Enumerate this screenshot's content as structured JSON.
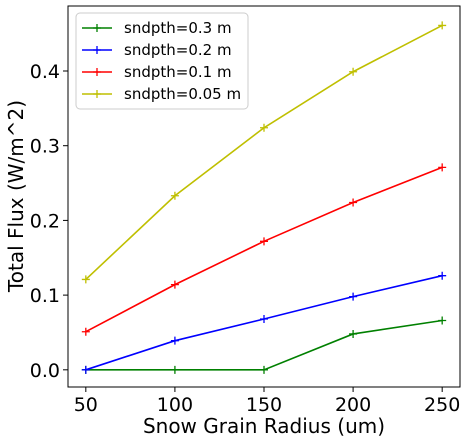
{
  "chart_data": {
    "type": "line",
    "title": "",
    "xlabel": "Snow Grain Radius (um)",
    "ylabel": "Total Flux (W/m^2)",
    "x": [
      50,
      100,
      150,
      200,
      250
    ],
    "xlim": [
      40,
      260
    ],
    "ylim": [
      -0.023,
      0.487
    ],
    "xticks": [
      50,
      100,
      150,
      200,
      250
    ],
    "yticks": [
      0.0,
      0.1,
      0.2,
      0.3,
      0.4
    ],
    "ytick_labels": [
      "0.0",
      "0.1",
      "0.2",
      "0.3",
      "0.4"
    ],
    "grid": false,
    "legend_position": "top-left",
    "marker": "plus",
    "series": [
      {
        "name": "sndpth=0.3 m",
        "color": "#008000",
        "values": [
          0.0,
          0.0,
          0.0,
          0.048,
          0.066
        ]
      },
      {
        "name": "sndpth=0.2 m",
        "color": "#0000ff",
        "values": [
          0.0,
          0.039,
          0.068,
          0.098,
          0.126
        ]
      },
      {
        "name": "sndpth=0.1 m",
        "color": "#ff0000",
        "values": [
          0.051,
          0.114,
          0.172,
          0.224,
          0.271
        ]
      },
      {
        "name": "sndpth=0.05 m",
        "color": "#bfbf00",
        "values": [
          0.121,
          0.233,
          0.324,
          0.399,
          0.461
        ]
      }
    ]
  }
}
